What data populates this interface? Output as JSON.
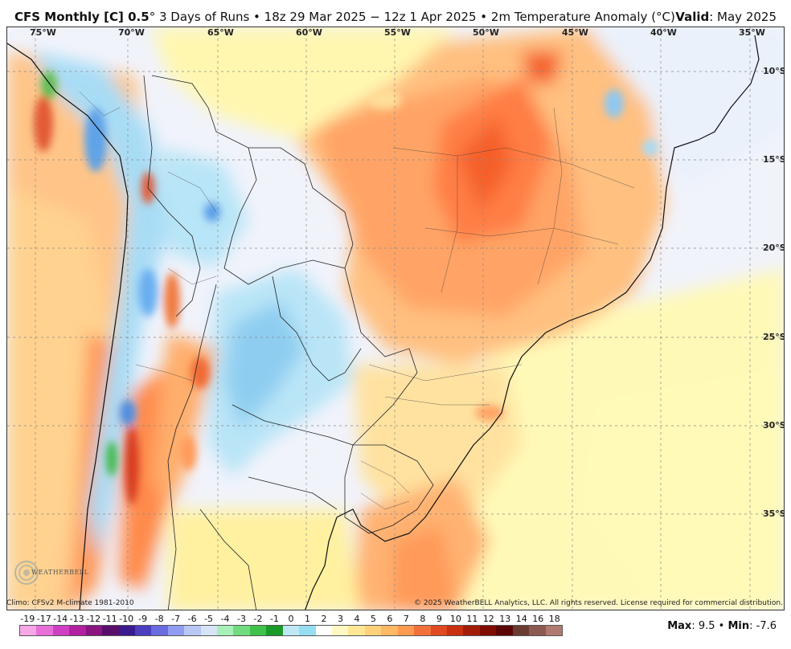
{
  "header": {
    "model": "CFS Monthly [C] 0.5",
    "degree": "°",
    "subtitle": " 3 Days of Runs • 18z 29 Mar 2025 − 12z 1 Apr 2025 • 2m Temperature Anomaly (°C)",
    "valid_label": "Valid",
    "valid_value": ": May 2025"
  },
  "map": {
    "lon_labels": [
      "75°W",
      "70°W",
      "65°W",
      "60°W",
      "55°W",
      "50°W",
      "45°W",
      "40°W",
      "35°W"
    ],
    "lat_labels": [
      "10°S",
      "15°S",
      "20°S",
      "25°S",
      "30°S",
      "35°S"
    ],
    "logo_text": "WEATHERBELL"
  },
  "footer": {
    "climo": "Climo: CFSv2 M-climate 1981-2010",
    "copyright": "© 2025 WeatherBELL Analytics, LLC. All rights reserved. License required for commercial distribution."
  },
  "colorbar": {
    "labels": [
      "-19",
      "-17",
      "-14",
      "-13",
      "-12",
      "-11",
      "-10",
      "-9",
      "-8",
      "-7",
      "-6",
      "-5",
      "-4",
      "-3",
      "-2",
      "-1",
      "0",
      "1",
      "2",
      "3",
      "4",
      "5",
      "6",
      "7",
      "8",
      "9",
      "10",
      "11",
      "12",
      "13",
      "14",
      "16",
      "18"
    ],
    "colors": [
      "#f7a6e8",
      "#e86fd8",
      "#cf3fc4",
      "#b0209f",
      "#8a157f",
      "#5a0e6b",
      "#3a1a8f",
      "#4b3fc0",
      "#6a6ce0",
      "#8f9cf0",
      "#b9c7f5",
      "#d7e4f7",
      "#a7f0b8",
      "#71dc7f",
      "#3fc24a",
      "#1a9a28",
      "#bfe8f5",
      "#95ddf0",
      "#ffffff",
      "#fff8c2",
      "#ffe795",
      "#ffd27a",
      "#ffb866",
      "#ff9a50",
      "#f2703a",
      "#e04a20",
      "#c8300f",
      "#a31c07",
      "#7e0c02",
      "#5c0505",
      "#6a3b30",
      "#8c5a50",
      "#b07a70"
    ],
    "max_label": "Max",
    "max_value": ": 9.5 • ",
    "min_label": "Min",
    "min_value": ": -7.6"
  }
}
